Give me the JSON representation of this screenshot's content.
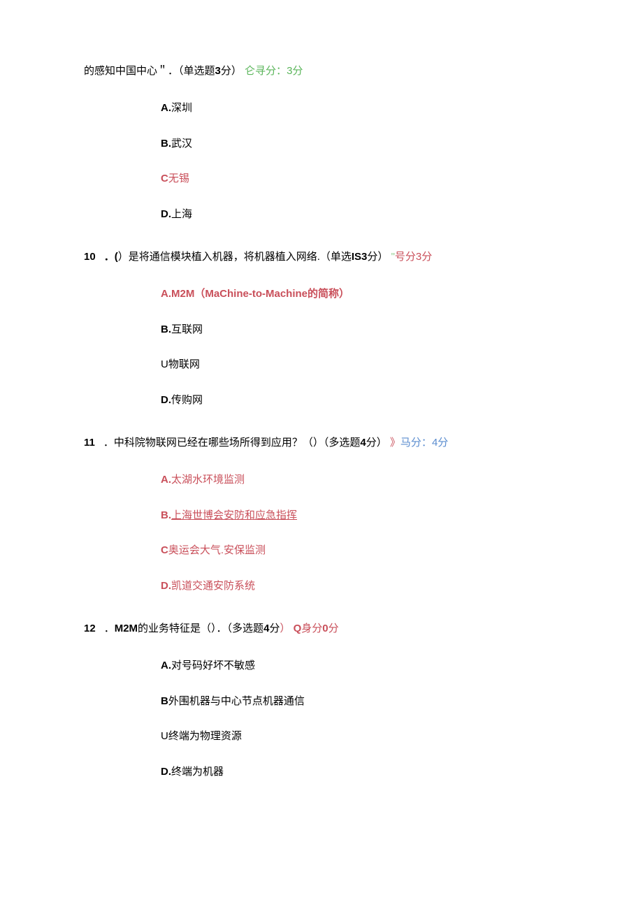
{
  "q9": {
    "stem_prefix": "的感知中国中心＂．（单选题",
    "stem_points_bold": "3",
    "stem_suffix": "分）",
    "score_label": "仑寻分：",
    "score_value": "3分",
    "options": {
      "a": {
        "letter": "A.",
        "text": "深圳",
        "correct": false
      },
      "b": {
        "letter": "B.",
        "text": "武汉",
        "correct": false
      },
      "c": {
        "letter": "C",
        "text": "无锡",
        "correct": true
      },
      "d": {
        "letter": "D.",
        "text": "上海",
        "correct": false
      }
    }
  },
  "q10": {
    "num": "10",
    "stem_prefix": "．(",
    "stem_mid": "）是将通信模块植入机器，将机器植入网络.（单选",
    "stem_bold": "IS3",
    "stem_suffix": "分）",
    "score_label_quote": "\"",
    "score_label": "号分",
    "score_value": "3分",
    "options": {
      "a": {
        "letter": "A.M2M",
        "text": "（MaChine-to-Machine的简称）",
        "correct": true
      },
      "b": {
        "letter": "B.",
        "text": "互联网",
        "correct": false
      },
      "c": {
        "letter": "U",
        "text": "物联网",
        "correct": false
      },
      "d": {
        "letter": "D.",
        "text": "传购网",
        "correct": false
      }
    }
  },
  "q11": {
    "num": "11",
    "stem": "．中科院物联网已经在哪些场所得到应用？（）（多选题",
    "stem_bold": "4",
    "stem_suffix": "分）",
    "score_arrow": "》",
    "score_label": "马分：",
    "score_value": "4分",
    "options": {
      "a": {
        "letter": "A.",
        "text": "太湖水环境监测",
        "correct": true
      },
      "b": {
        "letter": "B.",
        "text": "上海世博会安防和应急指挥",
        "correct": true
      },
      "c": {
        "letter": "C",
        "text": "奥运会大气.安保监测",
        "correct": true
      },
      "d": {
        "letter": "D.",
        "text": "凯道交通安防系统",
        "correct": true
      }
    }
  },
  "q12": {
    "num": "12",
    "stem_prefix": "．",
    "stem_bold1": "M2M",
    "stem_mid": "的业务特征是（）．（多选题",
    "stem_bold2": "4",
    "stem_suffix": "分",
    "stem_paren": "）",
    "score_bold": "Q",
    "score_label": "身分",
    "score_value_bold": "0",
    "score_value_suffix": "分",
    "options": {
      "a": {
        "letter": "A.",
        "text": "对号码好坏不敏感",
        "correct": false
      },
      "b": {
        "letter": "B",
        "text": "外围机器与中心节点机器通信",
        "correct": false
      },
      "c": {
        "letter": "U",
        "text": "终端为物理资源",
        "correct": false
      },
      "d": {
        "letter": "D.",
        "text": "终端为机器",
        "correct": false
      }
    }
  }
}
